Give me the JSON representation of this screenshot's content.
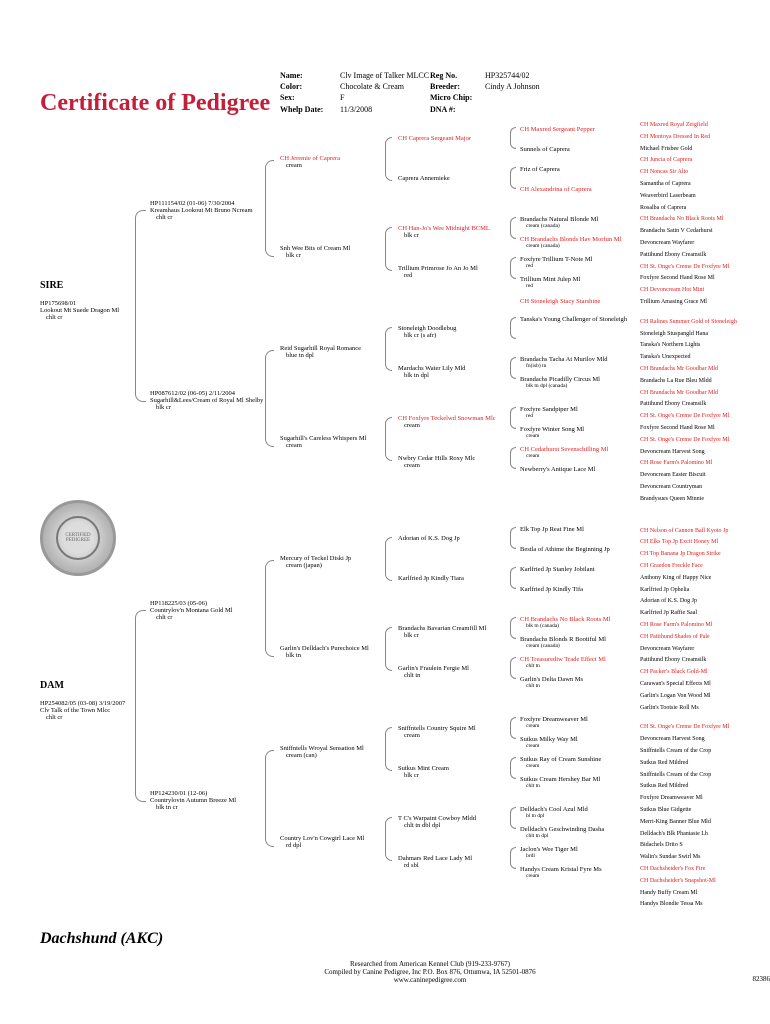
{
  "title": "Certificate of Pedigree",
  "info": {
    "name_label": "Name:",
    "name": "Clv Image of Talker MLCC",
    "color_label": "Color:",
    "color": "Chocolate & Cream",
    "sex_label": "Sex:",
    "sex": "F",
    "whelp_label": "Whelp Date:",
    "whelp": "11/3/2008",
    "reg_label": "Reg No.",
    "reg": "HP325744/02",
    "breeder_label": "Breeder:",
    "breeder": "Cindy A Johnson",
    "chip_label": "Micro Chip:",
    "dna_label": "DNA #:"
  },
  "breed": "Dachshund  (AKC)",
  "footer": {
    "line1": "Researched from   American Kennel Club   (919-233-9767)",
    "line2": "Compiled by Canine Pedigree, Inc  P.O. Box 876, Ottumwa, IA  52501-0876",
    "line3": "www.caninepedigree.com",
    "id": "82386"
  },
  "labels": {
    "sire": "SIRE",
    "dam": "DAM"
  },
  "gen1": {
    "sire": {
      "name": "HP175698/01",
      "sub1": "Lookout Mt Suede Dragon Ml",
      "sub2": "chlt cr"
    },
    "dam": {
      "name": "HP254082/05  (03-08)  3/19/2007",
      "sub1": "Clv Talk of the Town Mlcc",
      "sub2": "chlt cr"
    }
  },
  "gen2": [
    {
      "name": "HP111154/02  (01-06)  7/30/2004",
      "sub1": "Kreamhaus Lookout Mt Bruno Ncream",
      "sub2": "chlt cr"
    },
    {
      "name": "HP087612/02  (06-05)  2/11/2004",
      "sub1": "Sugarhill&Lees/Cream of Royal Ml Shelby",
      "sub2": "blk cr"
    },
    {
      "name": "HP118225/03  (05-06)",
      "sub1": "Countrylov'n Montana Gold Ml",
      "sub2": "chlt cr"
    },
    {
      "name": "HP124230/01  (12-06)",
      "sub1": "Countrylovin Autumn Breeze Ml",
      "sub2": "blk tn cr"
    }
  ],
  "gen3": [
    {
      "name": "CH Jeremie of Caprera",
      "sub": "cream",
      "red": true
    },
    {
      "name": "Snh Wee Bits of Cream Ml",
      "sub": "blk cr"
    },
    {
      "name": "Reid Sugarhill Royal Romance",
      "sub": "blue tn dpl"
    },
    {
      "name": "Sugarhill's Careless Whispers Ml",
      "sub": "cream"
    },
    {
      "name": "Mercury of Teckel Diski Jp",
      "sub": "cream  (japan)"
    },
    {
      "name": "Garlin's Delldach's Purechoice Ml",
      "sub": "blk tn"
    },
    {
      "name": "Sniffntells Wroyal Sensation Ml",
      "sub": "cream (can)"
    },
    {
      "name": "Country Lov'n Cowgirl Lace Ml",
      "sub": "rd dpl"
    }
  ],
  "gen4": [
    {
      "name": "CH Caprera Sergeant Major",
      "sub": "",
      "red": true
    },
    {
      "name": "Caprera Annemieke",
      "sub": ""
    },
    {
      "name": "CH Han-Jo's Wee Midnight BCML",
      "sub": "blk cr",
      "red": true
    },
    {
      "name": "Trillium Primrose Jo An Jo Ml",
      "sub": "red"
    },
    {
      "name": "Stoneleigh Doodlebug",
      "sub": "blk cr  (s afr)"
    },
    {
      "name": "Mardachs Water Lily Mld",
      "sub": "blk tn dpl"
    },
    {
      "name": "CH Foxfyre Teckelwd Snowman Mlc",
      "sub": "cream",
      "red": true
    },
    {
      "name": "Nwbry Cedar Hills Roxy Mlc",
      "sub": "cream"
    },
    {
      "name": "Adorian of K.S. Dog Jp",
      "sub": ""
    },
    {
      "name": "Karlfried Jp Kindly Tiara",
      "sub": ""
    },
    {
      "name": "Brandachs Bavarian Creamfill Ml",
      "sub": "blk cr"
    },
    {
      "name": "Garlin's Fraulein Fergie Ml",
      "sub": "chlt tn"
    },
    {
      "name": "Sniffntells Country Squire Ml",
      "sub": "cream"
    },
    {
      "name": "Sutkus Mint Cream",
      "sub": "blk cr"
    },
    {
      "name": "T C's Warpaint Cowboy Mldd",
      "sub": "chlt tn dbl dpl"
    },
    {
      "name": "Dahmars Red Lace Lady Ml",
      "sub": "rd sbl"
    }
  ],
  "gen5": [
    {
      "name": "CH Maxred Sergeant Pepper",
      "red": true
    },
    {
      "name": "Sunnels of Caprera"
    },
    {
      "name": "Friz of Caprera"
    },
    {
      "name": "CH Alexandrina of Caprera",
      "red": true
    },
    {
      "name": "Brandachs Natural Blonde Ml",
      "sub": "cream (canada)"
    },
    {
      "name": "CH Brandachs Blonds Hav Morfun Ml",
      "sub": "cream (canada)",
      "red": true
    },
    {
      "name": "Foxfyre Trillium T-Note Ml",
      "sub": "red"
    },
    {
      "name": "Trillium Mint Julep Ml",
      "sub": "red"
    },
    {
      "name": "CH Stoneleigh Stacy Starshine",
      "red": true
    },
    {
      "name": "Tanska's Young Challenger of Stoneleigh"
    },
    {
      "name": "Brandachs Tacha At Murilov Mld",
      "sub": "fn(isb) tn"
    },
    {
      "name": "Brandachs Picadilly Circus Ml",
      "sub": "blk tn dpl (canada)"
    },
    {
      "name": "Foxfyre Sandpiper Ml",
      "sub": "red"
    },
    {
      "name": "Foxfyre Winter Song Ml",
      "sub": "cream"
    },
    {
      "name": "CH Cedarhurst Sevenschilling Ml",
      "sub": "cream",
      "red": true
    },
    {
      "name": "Newberry's Antique Lace Ml"
    },
    {
      "name": "Elk Top Jp Reat Fine Ml"
    },
    {
      "name": "Bestla of Athime the Beginning Jp"
    },
    {
      "name": "Karlfried Jp Stanley Jobilant"
    },
    {
      "name": "Karlfried Jp Kindly Tifa"
    },
    {
      "name": "CH Brandachs No Black Roots Ml",
      "sub": "blk tn  (canada)",
      "red": true
    },
    {
      "name": "Brandachs Blonds R Bootiful Ml",
      "sub": "cream  (canada)"
    },
    {
      "name": "CH Treasurediw Trade Effect Ml",
      "sub": "chlt tn",
      "red": true
    },
    {
      "name": "Garlin's Delta Dawn Ms",
      "sub": "chlt tn"
    },
    {
      "name": "Foxfyre Dreamweaver Ml",
      "sub": "cream"
    },
    {
      "name": "Sutkus Milky Way Ml",
      "sub": "cream"
    },
    {
      "name": "Sutkus Ray of Cream Sunshine",
      "sub": "cream"
    },
    {
      "name": "Sutkus Cream Hershey Bar Ml",
      "sub": "chlt tn"
    },
    {
      "name": "Delldach's Cool Azul Mld",
      "sub": "bl tn dpl"
    },
    {
      "name": "Delldach's Geschwinding Dasha",
      "sub": "chlt tn dpl"
    },
    {
      "name": "Jaclon's Wee Tiger Ml",
      "sub": "brdl"
    },
    {
      "name": "Handys Cream Kristal Fyre Ms",
      "sub": "cream"
    }
  ],
  "gen6": [
    {
      "name": "CH Maxred Royal Zeigfield",
      "red": true
    },
    {
      "name": "CH Montoya Dressed In Red",
      "red": true
    },
    {
      "name": "Michael Frisbee Gold"
    },
    {
      "name": "CH Juncia of Caprera",
      "red": true
    },
    {
      "name": "CH Noncas Sir Alto",
      "red": true
    },
    {
      "name": "Samantha of Caprera"
    },
    {
      "name": "Weaverbird Laserbeam"
    },
    {
      "name": "Rosalba of Caprera"
    },
    {
      "name": "CH Brandachs No Black Roots Ml",
      "red": true
    },
    {
      "name": "Brandachs Satin V Cedarhurst"
    },
    {
      "name": "Devoncream Wayfarer"
    },
    {
      "name": "Pattihund Ebony Creamsilk"
    },
    {
      "name": "CH St. Onge's Creme De Foxfyre Ml",
      "red": true
    },
    {
      "name": "Foxfyre Second Hand Rose Ml"
    },
    {
      "name": "CH Devoncream Hot Mint",
      "red": true
    },
    {
      "name": "Trillium Amasing Grace Ml"
    },
    {
      "name": "CH Ralines Summer Gold of Stoneleigh",
      "red": true
    },
    {
      "name": "Stoneleigh Stuspangld Hana"
    },
    {
      "name": "Tanska's Northern Lights"
    },
    {
      "name": "Tanska's Unexpected"
    },
    {
      "name": "CH Brandachs Mr Goodbar Mld",
      "red": true
    },
    {
      "name": "Brandachs La Rue Bleu Mldd"
    },
    {
      "name": "CH Brandachs Mr Goodbar Mld",
      "red": true
    },
    {
      "name": "Pattihund Ebony Creamsilk"
    },
    {
      "name": "CH St. Onge's Creme De Foxfyre Ml",
      "red": true
    },
    {
      "name": "Foxfyre Second Hand Rose Ml"
    },
    {
      "name": "CH St. Onge's Creme De Foxfyre Ml",
      "red": true
    },
    {
      "name": "Devoncream Harvest Song"
    },
    {
      "name": "CH Rose Farm's Palomino Ml",
      "red": true
    },
    {
      "name": "Devoncream Easter Biscuit"
    },
    {
      "name": "Devoncream Countryman"
    },
    {
      "name": "Brandysues Queen Minnie"
    },
    {
      "name": "CH Nelson of Cannon Ball Kyoto Jp",
      "red": true
    },
    {
      "name": "CH Elks Top Jp Excit Honey Ml",
      "red": true
    },
    {
      "name": "CH Top Banana Jp Dragon Strike",
      "red": true
    },
    {
      "name": "CH Graedon Freckle Face",
      "red": true
    },
    {
      "name": "Anthony King of Happy Nice"
    },
    {
      "name": "Karlfried Jp Ophelia"
    },
    {
      "name": "Adorian of K.S. Dog Jp"
    },
    {
      "name": "Karlfried Jp Raffie Saal"
    },
    {
      "name": "CH Rose Farm's Palomino Ml",
      "red": true
    },
    {
      "name": "CH Pattihund Shades of Pale",
      "red": true
    },
    {
      "name": "Devoncream Wayfarer"
    },
    {
      "name": "Pattihund Ebony Creamsilk"
    },
    {
      "name": "CH Packer's Black Gold-Ml",
      "red": true
    },
    {
      "name": "Carawan's Special Effects Ml"
    },
    {
      "name": "Garlin's Logan Von Wood Ml"
    },
    {
      "name": "Garlin's Tootsie Roll Ms"
    },
    {
      "name": "CH St. Onge's Creme De Foxfyre Ml",
      "red": true
    },
    {
      "name": "Devoncream Harvest Song"
    },
    {
      "name": "Sniffntells Cream of the Crop"
    },
    {
      "name": "Sutkus Red Mildred"
    },
    {
      "name": "Sniffntells Cream of the Crop"
    },
    {
      "name": "Sutkus Red Mildred"
    },
    {
      "name": "Foxfyre Dreamweaver Ml"
    },
    {
      "name": "Sutkus Blue Gidgette"
    },
    {
      "name": "Merri-King Banner Blue Mld"
    },
    {
      "name": "Delldach's Blk Phantasie Lh"
    },
    {
      "name": "Bidachels Drito S"
    },
    {
      "name": "Walin's Sundae Swirl Ms"
    },
    {
      "name": "CH Dachsheider's Fox Fire",
      "red": true
    },
    {
      "name": "CH Dachsheider's Snapshot-Ml",
      "red": true
    },
    {
      "name": "Handy Buffy Cream Ml"
    },
    {
      "name": "Handys Blondie Tessa Ms"
    }
  ]
}
